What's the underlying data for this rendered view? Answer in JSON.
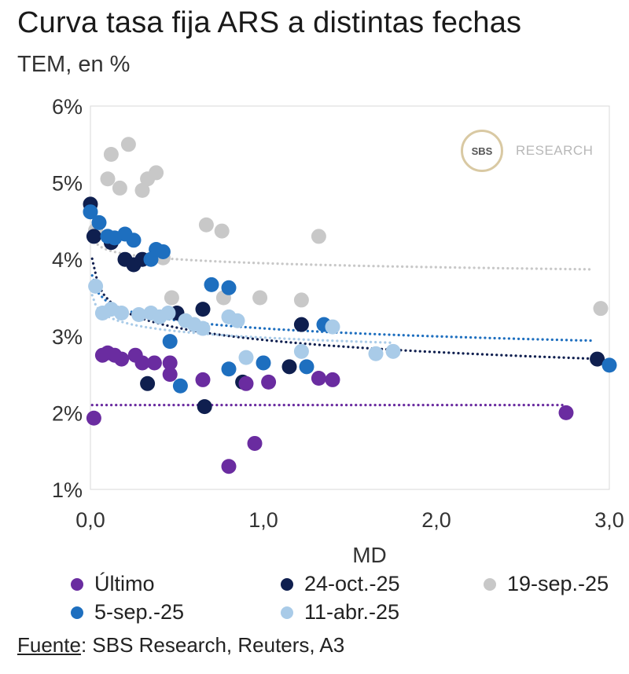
{
  "chart_data": {
    "type": "scatter",
    "title": "Curva tasa fija ARS a distintas fechas",
    "subtitle": "TEM, en %",
    "xlabel": "MD",
    "ylabel": "",
    "xlim": [
      0,
      3.0
    ],
    "ylim": [
      1,
      6
    ],
    "x_ticks": [
      "0,0",
      "1,0",
      "2,0",
      "3,0"
    ],
    "x_tick_values": [
      0,
      1,
      2,
      3
    ],
    "y_ticks": [
      "1%",
      "2%",
      "3%",
      "4%",
      "5%",
      "6%"
    ],
    "y_tick_values": [
      1,
      2,
      3,
      4,
      5,
      6
    ],
    "grid": false,
    "legend_position": "bottom",
    "series": [
      {
        "name": "19-sep.-25",
        "color": "#c8c8c8",
        "points": [
          [
            0.0,
            4.62
          ],
          [
            0.03,
            4.38
          ],
          [
            0.1,
            5.05
          ],
          [
            0.12,
            5.37
          ],
          [
            0.17,
            4.93
          ],
          [
            0.22,
            5.5
          ],
          [
            0.3,
            4.9
          ],
          [
            0.33,
            5.05
          ],
          [
            0.38,
            5.13
          ],
          [
            0.42,
            4.02
          ],
          [
            0.47,
            3.5
          ],
          [
            0.67,
            4.45
          ],
          [
            0.76,
            4.37
          ],
          [
            0.77,
            3.5
          ],
          [
            0.98,
            3.5
          ],
          [
            1.22,
            3.47
          ],
          [
            1.32,
            4.3
          ],
          [
            2.95,
            3.36
          ]
        ],
        "trend": {
          "a": 3.95,
          "b": -0.075,
          "x0": 0.01,
          "x1": 2.9
        }
      },
      {
        "name": "24-oct.-25",
        "color": "#0f1f4f",
        "points": [
          [
            0.0,
            4.72
          ],
          [
            0.02,
            4.3
          ],
          [
            0.12,
            4.22
          ],
          [
            0.2,
            4.0
          ],
          [
            0.25,
            3.93
          ],
          [
            0.3,
            4.0
          ],
          [
            0.33,
            2.38
          ],
          [
            0.5,
            3.3
          ],
          [
            0.65,
            3.35
          ],
          [
            0.66,
            2.08
          ],
          [
            0.88,
            2.4
          ],
          [
            1.15,
            2.6
          ],
          [
            1.22,
            3.15
          ],
          [
            2.93,
            2.7
          ]
        ],
        "trend": {
          "a": 2.95,
          "b": -0.23,
          "x0": 0.01,
          "x1": 2.9
        }
      },
      {
        "name": "5-sep.-25",
        "color": "#1e6fbf",
        "points": [
          [
            0.0,
            4.62
          ],
          [
            0.05,
            4.48
          ],
          [
            0.1,
            4.3
          ],
          [
            0.14,
            4.28
          ],
          [
            0.2,
            4.33
          ],
          [
            0.25,
            4.25
          ],
          [
            0.35,
            4.0
          ],
          [
            0.38,
            4.13
          ],
          [
            0.42,
            4.1
          ],
          [
            0.46,
            2.93
          ],
          [
            0.52,
            2.35
          ],
          [
            0.7,
            3.67
          ],
          [
            0.8,
            2.57
          ],
          [
            0.8,
            3.63
          ],
          [
            1.0,
            2.65
          ],
          [
            1.25,
            2.6
          ],
          [
            1.35,
            3.15
          ],
          [
            3.0,
            2.62
          ]
        ],
        "trend": {
          "a": 3.1,
          "b": -0.15,
          "x0": 0.01,
          "x1": 2.9
        }
      },
      {
        "name": "11-abr.-25",
        "color": "#a9cbe8",
        "points": [
          [
            0.03,
            3.65
          ],
          [
            0.07,
            3.3
          ],
          [
            0.12,
            3.35
          ],
          [
            0.18,
            3.3
          ],
          [
            0.28,
            3.28
          ],
          [
            0.35,
            3.3
          ],
          [
            0.4,
            3.25
          ],
          [
            0.45,
            3.3
          ],
          [
            0.55,
            3.2
          ],
          [
            0.6,
            3.15
          ],
          [
            0.65,
            3.1
          ],
          [
            0.8,
            3.25
          ],
          [
            0.85,
            3.2
          ],
          [
            0.9,
            2.72
          ],
          [
            1.22,
            2.8
          ],
          [
            1.4,
            3.12
          ],
          [
            1.65,
            2.77
          ],
          [
            1.75,
            2.8
          ]
        ],
        "trend": {
          "a": 2.98,
          "b": -0.12,
          "x0": 0.01,
          "x1": 1.75
        }
      },
      {
        "name": "Último",
        "color": "#6a2ca0",
        "points": [
          [
            0.02,
            1.93
          ],
          [
            0.07,
            2.75
          ],
          [
            0.1,
            2.78
          ],
          [
            0.14,
            2.75
          ],
          [
            0.18,
            2.7
          ],
          [
            0.26,
            2.75
          ],
          [
            0.3,
            2.65
          ],
          [
            0.37,
            2.65
          ],
          [
            0.46,
            2.65
          ],
          [
            0.46,
            2.5
          ],
          [
            0.65,
            2.43
          ],
          [
            0.8,
            1.3
          ],
          [
            0.9,
            2.38
          ],
          [
            0.95,
            1.6
          ],
          [
            1.03,
            2.4
          ],
          [
            1.32,
            2.45
          ],
          [
            1.4,
            2.43
          ],
          [
            2.75,
            2.0
          ]
        ],
        "trend": {
          "a": 2.1,
          "b": 0.0,
          "x0": 0.01,
          "x1": 2.75
        }
      }
    ]
  },
  "legend": {
    "items": [
      {
        "label": "Último",
        "color": "#6a2ca0"
      },
      {
        "label": "24-oct.-25",
        "color": "#0f1f4f"
      },
      {
        "label": "19-sep.-25",
        "color": "#c8c8c8"
      },
      {
        "label": "5-sep.-25",
        "color": "#1e6fbf"
      },
      {
        "label": "11-abr.-25",
        "color": "#a9cbe8"
      }
    ]
  },
  "logo": {
    "mark": "SBS",
    "text": "RESEARCH"
  },
  "source": {
    "label": "Fuente",
    "text": ": SBS Research, Reuters, A3"
  }
}
